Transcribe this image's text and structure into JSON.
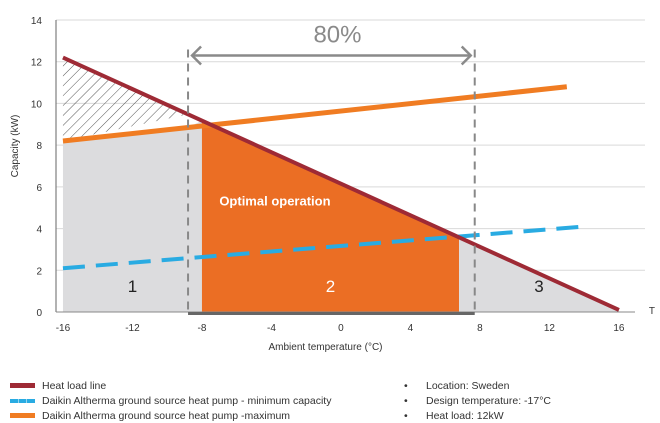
{
  "chart_data": {
    "type": "line",
    "xlabel": "Ambient temperature (°C)",
    "ylabel": "Capacity (kW)",
    "x_ticks": [
      -16,
      -12,
      -8,
      -4,
      0,
      4,
      8,
      12,
      16
    ],
    "y_ticks": [
      0,
      2,
      4,
      6,
      8,
      10,
      12,
      14
    ],
    "xlim": [
      -16.4,
      17.5
    ],
    "ylim": [
      0,
      14
    ],
    "x_axis_end_label": "T",
    "grid": "horizontal",
    "series": [
      {
        "name": "Heat load line",
        "color": "#9e2a35",
        "style": "solid",
        "points": [
          [
            -16,
            12.2
          ],
          [
            16,
            0.1
          ]
        ]
      },
      {
        "name": "Daikin Altherma ground source heat pump - minimum capacity",
        "color": "#29abe2",
        "style": "dashed",
        "points": [
          [
            -16,
            2.1
          ],
          [
            14,
            4.1
          ]
        ]
      },
      {
        "name": "Daikin Altherma ground source heat pump -maximum",
        "color": "#f07c22",
        "style": "solid",
        "points": [
          [
            -16,
            8.2
          ],
          [
            13,
            10.8
          ]
        ]
      }
    ],
    "regions": [
      {
        "label": "1",
        "x": [
          -16,
          -8
        ],
        "fill": "#dcdcde"
      },
      {
        "label": "2",
        "x": [
          -8,
          6.8
        ],
        "fill": "#eb6e24"
      },
      {
        "label": "3",
        "x": [
          6.8,
          16
        ],
        "fill": "#dcdcde"
      }
    ],
    "hatched_region": {
      "x": [
        -16,
        -8.8
      ]
    },
    "annotations": [
      {
        "text": "Optimal operation",
        "x": -7,
        "y": 5.1
      },
      {
        "text": "80%",
        "x": -0.2,
        "y": 13.5
      }
    ],
    "span_arrow": {
      "x": [
        -8.8,
        7.7
      ],
      "y": 12.3,
      "label": "80%"
    },
    "dashed_verticals": [
      -8.8,
      7.7
    ]
  },
  "legend": [
    {
      "label": "Heat load line",
      "icon": "heat-load-swatch"
    },
    {
      "label": "Daikin Altherma ground source heat pump - minimum capacity",
      "icon": "min-capacity-swatch"
    },
    {
      "label": "Daikin Altherma ground source heat pump -maximum",
      "icon": "max-capacity-swatch"
    }
  ],
  "notes": [
    "Location: Sweden",
    "Design temperature: -17°C",
    "Heat load: 12kW"
  ],
  "bullet_char": "•"
}
